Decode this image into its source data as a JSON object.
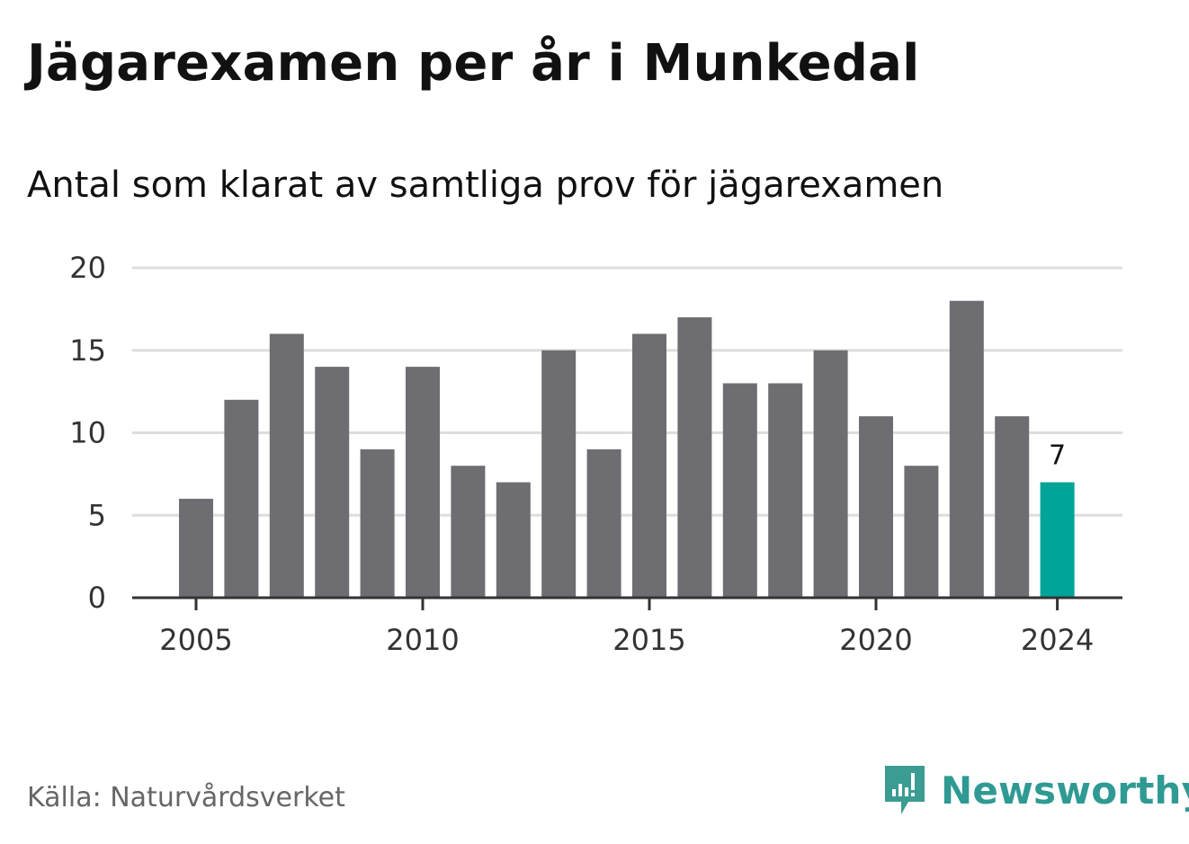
{
  "header": {
    "title": "Jägarexamen per år i Munkedal",
    "subtitle": "Antal som klarat av samtliga prov för jägarexamen"
  },
  "footer": {
    "source": "Källa: Naturvårdsverket",
    "brand": "Newsworthy",
    "brand_icon": "newsworthy-logo-icon"
  },
  "colors": {
    "bar": "#6e6d72",
    "highlight": "#00a499",
    "grid": "#dddddd",
    "axis": "#333333",
    "brand": "#2f9a93",
    "source_text": "#666666"
  },
  "chart_data": {
    "type": "bar",
    "title": "Jägarexamen per år i Munkedal",
    "subtitle": "Antal som klarat av samtliga prov för jägarexamen",
    "xlabel": "",
    "ylabel": "",
    "categories": [
      2005,
      2006,
      2007,
      2008,
      2009,
      2010,
      2011,
      2012,
      2013,
      2014,
      2015,
      2016,
      2017,
      2018,
      2019,
      2020,
      2021,
      2022,
      2023,
      2024
    ],
    "values": [
      6,
      12,
      16,
      14,
      9,
      14,
      8,
      7,
      15,
      9,
      16,
      17,
      13,
      13,
      15,
      11,
      8,
      18,
      11,
      7
    ],
    "highlight_category": 2024,
    "highlight_label": "7",
    "ylim": [
      0,
      20
    ],
    "yticks": [
      0,
      5,
      10,
      15,
      20
    ],
    "xticks": [
      2005,
      2010,
      2015,
      2020,
      2024
    ],
    "grid": true,
    "legend": "none"
  }
}
